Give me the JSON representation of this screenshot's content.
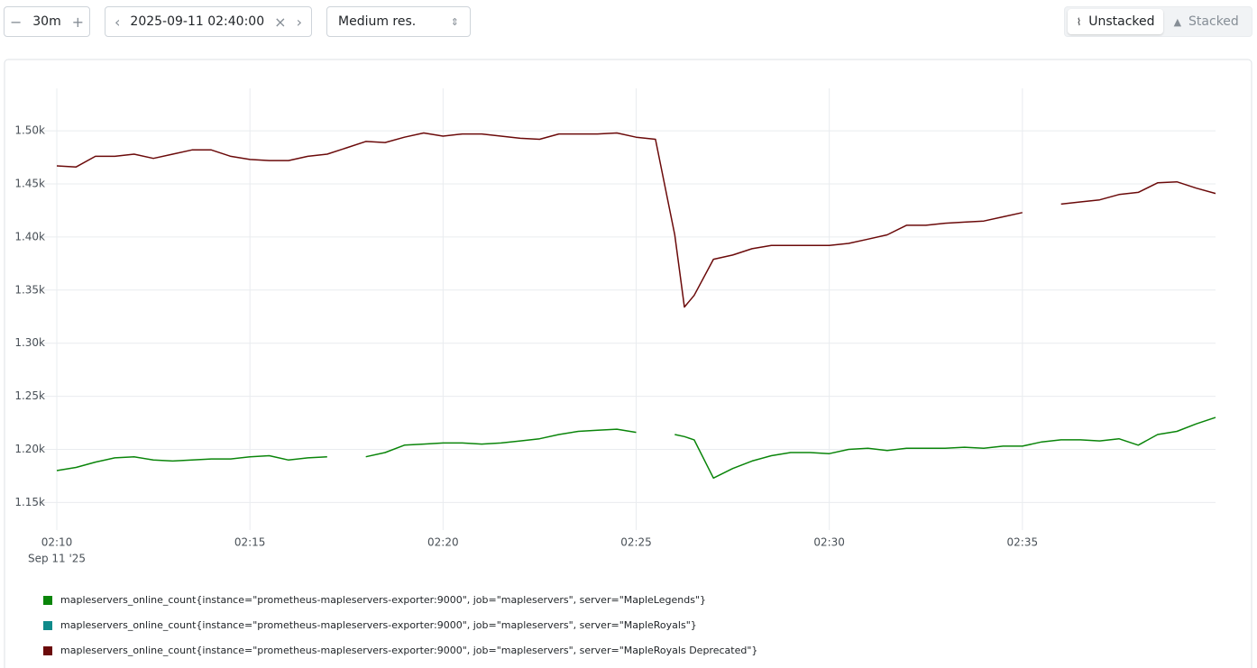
{
  "toolbar": {
    "range": "30m",
    "end_time": "2025-09-11 02:40:00",
    "resolution": "Medium res.",
    "modes": [
      "Unstacked",
      "Stacked"
    ]
  },
  "chart_data": {
    "type": "line",
    "x_axis_date": "Sep 11 '25",
    "x": [
      10,
      10.5,
      11,
      11.5,
      12,
      12.5,
      13,
      13.5,
      14,
      14.5,
      15,
      15.5,
      16,
      16.5,
      17,
      17.5,
      18,
      18.5,
      19,
      19.5,
      20,
      20.5,
      21,
      21.5,
      22,
      22.5,
      23,
      23.5,
      24,
      24.5,
      25,
      25.5,
      26,
      26.25,
      26.5,
      27,
      27.5,
      28,
      28.5,
      29,
      29.5,
      30,
      30.5,
      31,
      31.5,
      32,
      32.5,
      33,
      33.5,
      34,
      34.5,
      35,
      35.5,
      36,
      36.5,
      37,
      37.5,
      38,
      38.5,
      39,
      39.5,
      40
    ],
    "series": [
      {
        "name": "mapleservers_online_count{instance=\"prometheus-mapleservers-exporter:9000\", job=\"mapleservers\", server=\"MapleLegends\"}",
        "color": "#0a850a",
        "values": [
          1180,
          1183,
          1188,
          1192,
          1193,
          1190,
          1189,
          1190,
          1191,
          1191,
          1193,
          1194,
          1190,
          1192,
          1193,
          null,
          1193,
          1197,
          1204,
          1205,
          1206,
          1206,
          1205,
          1206,
          1208,
          1210,
          1214,
          1217,
          1218,
          1219,
          1216,
          null,
          1214,
          1212,
          1209,
          1173,
          1182,
          1189,
          1194,
          1197,
          1197,
          1196,
          1200,
          1201,
          1199,
          1201,
          1201,
          1201,
          1202,
          1201,
          1203,
          1203,
          1207,
          1209,
          1209,
          1208,
          1210,
          1204,
          1214,
          1217,
          1224,
          1230
        ]
      },
      {
        "name": "mapleservers_online_count{instance=\"prometheus-mapleservers-exporter:9000\", job=\"mapleservers\", server=\"MapleRoyals\"}",
        "color": "#0f8a8a",
        "values": [
          null,
          null,
          null,
          null,
          null,
          null,
          null,
          null,
          null,
          null,
          null,
          null,
          null,
          null,
          null,
          null,
          null,
          null,
          null,
          null,
          null,
          null,
          null,
          null,
          null,
          null,
          null,
          null,
          null,
          null,
          null,
          null,
          null,
          null,
          null,
          null,
          null,
          null,
          null,
          null,
          null,
          null,
          null,
          null,
          null,
          null,
          null,
          null,
          null,
          null,
          null,
          null,
          null,
          null,
          null,
          null,
          null,
          null,
          null,
          null,
          null,
          null
        ]
      },
      {
        "name": "mapleservers_online_count{instance=\"prometheus-mapleservers-exporter:9000\", job=\"mapleservers\", server=\"MapleRoyals Deprecated\"}",
        "color": "#6b0a0a",
        "values": [
          1467,
          1466,
          1476,
          1476,
          1478,
          1474,
          1478,
          1482,
          1482,
          1476,
          1473,
          1472,
          1472,
          1476,
          1478,
          1484,
          1490,
          1489,
          1494,
          1498,
          1495,
          1497,
          1497,
          1495,
          1493,
          1492,
          1497,
          1497,
          1497,
          1498,
          1494,
          1492,
          1402,
          1334,
          1345,
          1379,
          1383,
          1389,
          1392,
          1392,
          1392,
          1392,
          1394,
          1398,
          1402,
          1411,
          1411,
          1413,
          1414,
          1415,
          1419,
          1423,
          null,
          1431,
          1433,
          1435,
          1440,
          1442,
          1451,
          1452,
          1446,
          1441
        ]
      }
    ],
    "xlim": [
      10,
      40
    ],
    "xticks": [
      {
        "value": 10,
        "label": "02:10"
      },
      {
        "value": 15,
        "label": "02:15"
      },
      {
        "value": 20,
        "label": "02:20"
      },
      {
        "value": 25,
        "label": "02:25"
      },
      {
        "value": 30,
        "label": "02:30"
      },
      {
        "value": 35,
        "label": "02:35"
      }
    ],
    "ylim": [
      1124,
      1540
    ],
    "yticks": [
      {
        "value": 1150,
        "label": "1.15k"
      },
      {
        "value": 1200,
        "label": "1.20k"
      },
      {
        "value": 1250,
        "label": "1.25k"
      },
      {
        "value": 1300,
        "label": "1.30k"
      },
      {
        "value": 1350,
        "label": "1.35k"
      },
      {
        "value": 1400,
        "label": "1.40k"
      },
      {
        "value": 1450,
        "label": "1.45k"
      },
      {
        "value": 1500,
        "label": "1.50k"
      }
    ],
    "grid": true
  }
}
